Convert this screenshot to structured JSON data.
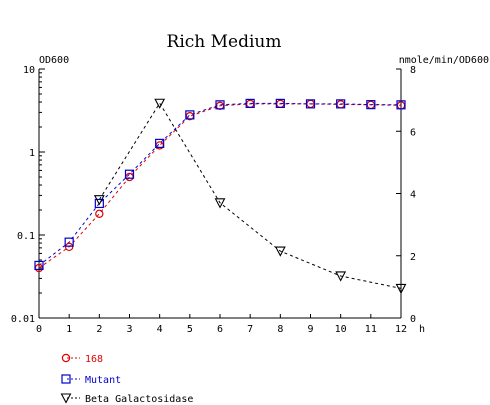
{
  "chart_data": {
    "type": "line",
    "title": "Rich Medium",
    "xlabel": "h",
    "ylabel_left": "OD600",
    "ylabel_right": "nmole/min/OD600",
    "x_ticks": [
      "0",
      "1",
      "2",
      "3",
      "4",
      "5",
      "6",
      "7",
      "8",
      "9",
      "10",
      "11",
      "12"
    ],
    "y_left_ticks": [
      "10",
      "1",
      "0.1",
      "0.01"
    ],
    "y_right_ticks": [
      "8",
      "6",
      "4",
      "2",
      "0"
    ],
    "xlim": [
      0,
      12
    ],
    "y_left_scale": "log",
    "y_left_lim": [
      0.01,
      10
    ],
    "y_right_lim": [
      0,
      8
    ],
    "grid": false,
    "legend_position": "bottom-left",
    "colors": {
      "s168": "#e00000",
      "mutant": "#0000cc",
      "beta": "#000000",
      "axis": "#000000"
    },
    "series": [
      {
        "name": "168",
        "axis": "left",
        "marker": "circle",
        "x": [
          0,
          1,
          2,
          3,
          4,
          5,
          6,
          7,
          8,
          9,
          10,
          11,
          12
        ],
        "values": [
          0.04,
          0.072,
          0.18,
          0.5,
          1.2,
          2.7,
          3.6,
          3.8,
          3.8,
          3.8,
          3.75,
          3.7,
          3.65
        ]
      },
      {
        "name": "Mutant",
        "axis": "left",
        "marker": "square",
        "x": [
          0,
          1,
          2,
          3,
          4,
          5,
          6,
          7,
          8,
          9,
          10,
          11,
          12
        ],
        "values": [
          0.043,
          0.082,
          0.24,
          0.54,
          1.27,
          2.8,
          3.7,
          3.85,
          3.85,
          3.8,
          3.8,
          3.72,
          3.7
        ]
      },
      {
        "name": "Beta Galactosidase",
        "axis": "right",
        "marker": "triangle-down",
        "x": [
          2,
          4,
          6,
          8,
          10,
          12
        ],
        "values": [
          3.8,
          6.9,
          3.7,
          2.15,
          1.35,
          0.95
        ]
      }
    ]
  }
}
